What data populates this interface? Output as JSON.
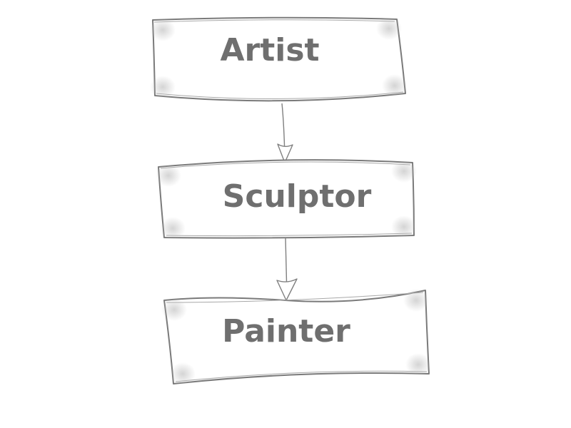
{
  "diagram": {
    "nodes": [
      {
        "id": "artist",
        "label": "Artist"
      },
      {
        "id": "sculptor",
        "label": "Sculptor"
      },
      {
        "id": "painter",
        "label": "Painter"
      }
    ],
    "edges": [
      {
        "from": "artist",
        "to": "sculptor"
      },
      {
        "from": "sculptor",
        "to": "painter"
      }
    ]
  }
}
